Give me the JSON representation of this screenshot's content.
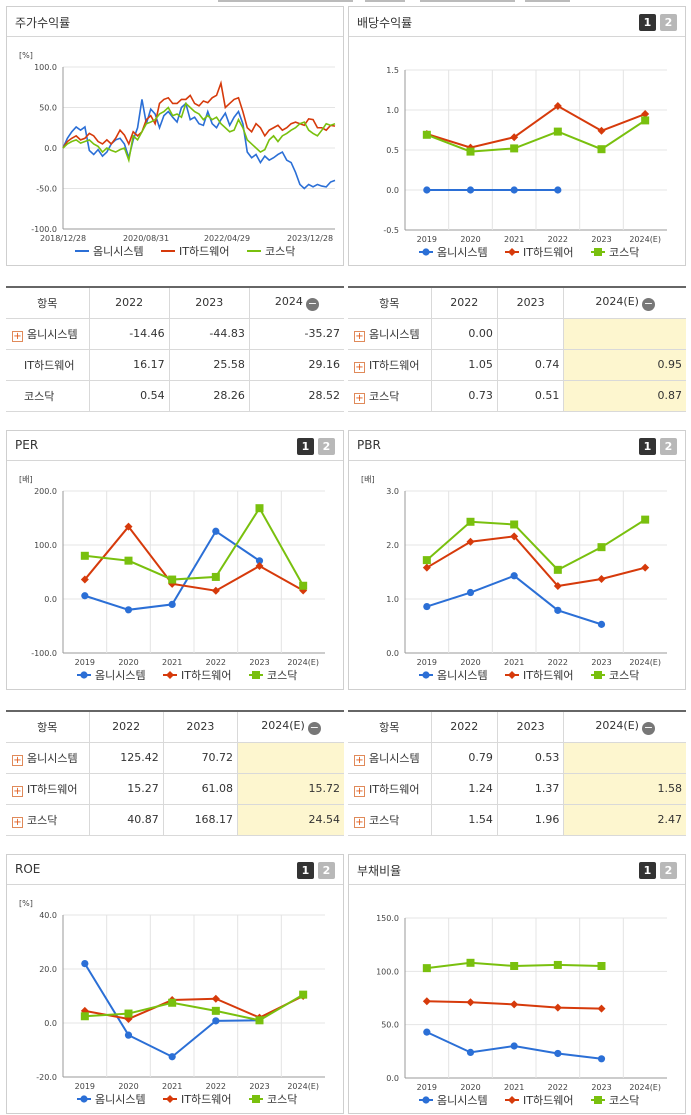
{
  "colors": {
    "series": [
      "#2b6fd6",
      "#d63a0b",
      "#79c00e"
    ],
    "highlight": "#fdf6cf"
  },
  "legend": [
    "옴니시스템",
    "IT하드웨어",
    "코스닥"
  ],
  "icons": {
    "expand": "plus-box-icon",
    "collapse": "minus-circle-icon"
  },
  "buttons": [
    "1",
    "2"
  ],
  "tables": {
    "returns": {
      "header": [
        "항목",
        "2022",
        "2023",
        "2024"
      ],
      "rows": [
        {
          "name": "옴니시스템",
          "expand": true,
          "cells": [
            "-14.46",
            "-44.83",
            "-35.27"
          ]
        },
        {
          "name": "IT하드웨어",
          "expand": false,
          "cells": [
            "16.17",
            "25.58",
            "29.16"
          ]
        },
        {
          "name": "코스닥",
          "expand": false,
          "cells": [
            "0.54",
            "28.26",
            "28.52"
          ]
        }
      ]
    },
    "dividend": {
      "header": [
        "항목",
        "2022",
        "2023",
        "2024(E)"
      ],
      "rows": [
        {
          "name": "옴니시스템",
          "expand": true,
          "cells": [
            "0.00",
            "",
            ""
          ]
        },
        {
          "name": "IT하드웨어",
          "expand": true,
          "cells": [
            "1.05",
            "0.74",
            "0.95"
          ]
        },
        {
          "name": "코스닥",
          "expand": true,
          "cells": [
            "0.73",
            "0.51",
            "0.87"
          ]
        }
      ]
    },
    "per": {
      "header": [
        "항목",
        "2022",
        "2023",
        "2024(E)"
      ],
      "rows": [
        {
          "name": "옴니시스템",
          "expand": true,
          "cells": [
            "125.42",
            "70.72",
            ""
          ]
        },
        {
          "name": "IT하드웨어",
          "expand": true,
          "cells": [
            "15.27",
            "61.08",
            "15.72"
          ]
        },
        {
          "name": "코스닥",
          "expand": true,
          "cells": [
            "40.87",
            "168.17",
            "24.54"
          ]
        }
      ]
    },
    "pbr": {
      "header": [
        "항목",
        "2022",
        "2023",
        "2024(E)"
      ],
      "rows": [
        {
          "name": "옴니시스템",
          "expand": true,
          "cells": [
            "0.79",
            "0.53",
            ""
          ]
        },
        {
          "name": "IT하드웨어",
          "expand": true,
          "cells": [
            "1.24",
            "1.37",
            "1.58"
          ]
        },
        {
          "name": "코스닥",
          "expand": true,
          "cells": [
            "1.54",
            "1.96",
            "2.47"
          ]
        }
      ]
    }
  },
  "chart_data": [
    {
      "id": "returns",
      "type": "line",
      "title": "주가수익률",
      "unit": "[%]",
      "ylim": [
        -100,
        100
      ],
      "yticks": [
        "100.0",
        "50.0",
        "0.0",
        "-50.0",
        "-100.0"
      ],
      "x_labels": [
        "2018/12/28",
        "2020/08/31",
        "2022/04/29",
        "2023/12/28"
      ],
      "series": [
        {
          "name": "옴니시스템",
          "values": [
            0,
            12,
            20,
            26,
            22,
            26,
            -3,
            -8,
            -2,
            -10,
            -5,
            5,
            10,
            12,
            5,
            -12,
            10,
            25,
            60,
            30,
            48,
            42,
            25,
            40,
            45,
            38,
            32,
            50,
            55,
            35,
            38,
            30,
            28,
            45,
            30,
            25,
            35,
            43,
            28,
            38,
            45,
            30,
            -5,
            -12,
            -8,
            -18,
            -10,
            -15,
            -12,
            -8,
            -5,
            -15,
            -18,
            -30,
            -45,
            -50,
            -45,
            -48,
            -45,
            -47,
            -48,
            -42,
            -40
          ]
        },
        {
          "name": "IT하드웨어",
          "values": [
            0,
            8,
            12,
            15,
            10,
            12,
            18,
            15,
            8,
            5,
            10,
            5,
            12,
            22,
            16,
            5,
            20,
            15,
            20,
            35,
            40,
            30,
            55,
            60,
            62,
            55,
            55,
            60,
            60,
            65,
            55,
            52,
            58,
            56,
            62,
            65,
            80,
            50,
            55,
            60,
            62,
            45,
            25,
            20,
            30,
            25,
            15,
            22,
            25,
            28,
            22,
            25,
            30,
            32,
            30,
            28,
            36,
            35,
            25,
            25,
            22,
            28,
            27
          ]
        },
        {
          "name": "코스닥",
          "values": [
            0,
            5,
            8,
            10,
            6,
            8,
            10,
            5,
            2,
            -5,
            0,
            -3,
            -5,
            -2,
            0,
            -15,
            15,
            10,
            20,
            30,
            32,
            35,
            42,
            45,
            50,
            40,
            42,
            38,
            55,
            50,
            45,
            42,
            35,
            40,
            35,
            38,
            30,
            25,
            20,
            22,
            35,
            25,
            10,
            5,
            0,
            -5,
            -2,
            10,
            15,
            8,
            15,
            18,
            22,
            25,
            30,
            32,
            22,
            18,
            15,
            22,
            30,
            28,
            30
          ]
        }
      ]
    },
    {
      "id": "dividend",
      "type": "line",
      "title": "배당수익률",
      "ylim": [
        -0.5,
        1.5
      ],
      "yticks": [
        "1.5",
        "1.0",
        "0.5",
        "0.0",
        "-0.5"
      ],
      "categories": [
        "2019",
        "2020",
        "2021",
        "2022",
        "2023",
        "2024(E)"
      ],
      "series": [
        {
          "name": "옴니시스템",
          "values": [
            0,
            0,
            0,
            0,
            null,
            null
          ]
        },
        {
          "name": "IT하드웨어",
          "values": [
            0.7,
            0.53,
            0.66,
            1.05,
            0.74,
            0.95
          ]
        },
        {
          "name": "코스닥",
          "values": [
            0.69,
            0.48,
            0.52,
            0.73,
            0.51,
            0.87
          ]
        }
      ]
    },
    {
      "id": "per",
      "type": "line",
      "title": "PER",
      "unit": "[배]",
      "ylim": [
        -100,
        200
      ],
      "yticks": [
        "200.0",
        "100.0",
        "0.0",
        "-100.0"
      ],
      "categories": [
        "2019",
        "2020",
        "2021",
        "2022",
        "2023",
        "2024(E)"
      ],
      "series": [
        {
          "name": "옴니시스템",
          "values": [
            6,
            -20,
            -10,
            125.42,
            70.72,
            null
          ]
        },
        {
          "name": "IT하드웨어",
          "values": [
            36,
            134,
            28,
            15.27,
            61.08,
            15.72
          ]
        },
        {
          "name": "코스닥",
          "values": [
            80,
            71,
            36,
            40.87,
            168.17,
            24.54
          ]
        }
      ]
    },
    {
      "id": "pbr",
      "type": "line",
      "title": "PBR",
      "unit": "[배]",
      "ylim": [
        0,
        3
      ],
      "yticks": [
        "3.0",
        "2.0",
        "1.0",
        "0.0"
      ],
      "categories": [
        "2019",
        "2020",
        "2021",
        "2022",
        "2023",
        "2024(E)"
      ],
      "series": [
        {
          "name": "옴니시스템",
          "values": [
            0.86,
            1.12,
            1.43,
            0.79,
            0.53,
            null
          ]
        },
        {
          "name": "IT하드웨어",
          "values": [
            1.58,
            2.06,
            2.16,
            1.24,
            1.37,
            1.58
          ]
        },
        {
          "name": "코스닥",
          "values": [
            1.72,
            2.43,
            2.38,
            1.54,
            1.96,
            2.47
          ]
        }
      ]
    },
    {
      "id": "roe",
      "type": "line",
      "title": "ROE",
      "unit": "[%]",
      "ylim": [
        -20,
        40
      ],
      "yticks": [
        "40.0",
        "20.0",
        "0.0",
        "-20.0"
      ],
      "categories": [
        "2019",
        "2020",
        "2021",
        "2022",
        "2023",
        "2024(E)"
      ],
      "series": [
        {
          "name": "옴니시스템",
          "values": [
            22,
            -4.5,
            -12.5,
            0.8,
            1,
            null
          ]
        },
        {
          "name": "IT하드웨어",
          "values": [
            4.5,
            1.5,
            8.5,
            9,
            2,
            10
          ]
        },
        {
          "name": "코스닥",
          "values": [
            2.5,
            3.5,
            7.5,
            4.5,
            1,
            10.5
          ]
        }
      ]
    },
    {
      "id": "debt",
      "type": "line",
      "title": "부채비율",
      "ylim": [
        0,
        150
      ],
      "yticks": [
        "150.0",
        "100.0",
        "50.0",
        "0.0"
      ],
      "categories": [
        "2019",
        "2020",
        "2021",
        "2022",
        "2023",
        "2024(E)"
      ],
      "series": [
        {
          "name": "옴니시스템",
          "values": [
            43,
            24,
            30,
            23,
            18,
            null
          ]
        },
        {
          "name": "IT하드웨어",
          "values": [
            72,
            71,
            69,
            66,
            65,
            null
          ]
        },
        {
          "name": "코스닥",
          "values": [
            103,
            108,
            105,
            106,
            105,
            null
          ]
        }
      ]
    }
  ]
}
